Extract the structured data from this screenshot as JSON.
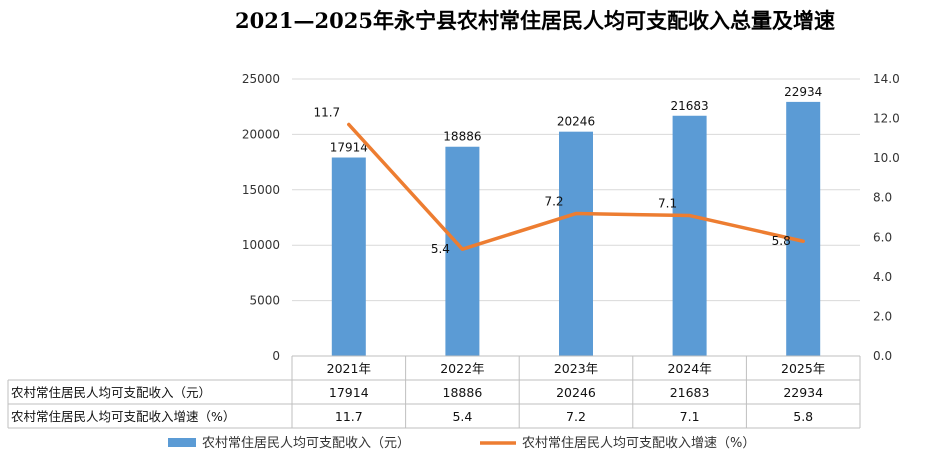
{
  "chart_data": {
    "type": "bar",
    "title": "2021—2025年永宁县农村常住居民人均可支配收入总量及增速",
    "categories": [
      "2021年",
      "2022年",
      "2023年",
      "2024年",
      "2025年"
    ],
    "series": [
      {
        "name": "农村常住居民人均可支配收入（元）",
        "type": "bar",
        "axis": "left",
        "color": "#5B9BD5",
        "values": [
          17914,
          18886,
          20246,
          21683,
          22934
        ]
      },
      {
        "name": "农村常住居民人均可支配收入增速（%）",
        "type": "line",
        "axis": "right",
        "color": "#ED7D31",
        "values": [
          11.7,
          5.4,
          7.2,
          7.1,
          5.8
        ]
      }
    ],
    "left_axis": {
      "ylim": [
        0,
        25000
      ],
      "ticks": [
        "0",
        "5000",
        "10000",
        "15000",
        "20000",
        "25000"
      ]
    },
    "right_axis": {
      "ylim": [
        0,
        14
      ],
      "ticks": [
        "0.0",
        "2.0",
        "4.0",
        "6.0",
        "8.0",
        "10.0",
        "12.0",
        "14.0"
      ]
    },
    "grid": true,
    "legend_position": "bottom",
    "data_table": {
      "rows": [
        {
          "label": "农村常住居民人均可支配收入（元）",
          "values": [
            "17914",
            "18886",
            "20246",
            "21683",
            "22934"
          ]
        },
        {
          "label": "农村常住居民人均可支配收入增速（%）",
          "values": [
            "11.7",
            "5.4",
            "7.2",
            "7.1",
            "5.8"
          ]
        }
      ]
    },
    "legend": {
      "bar_label": "农村常住居民人均可支配收入（元）",
      "line_label": "农村常住居民人均可支配收入增速（%）"
    }
  }
}
